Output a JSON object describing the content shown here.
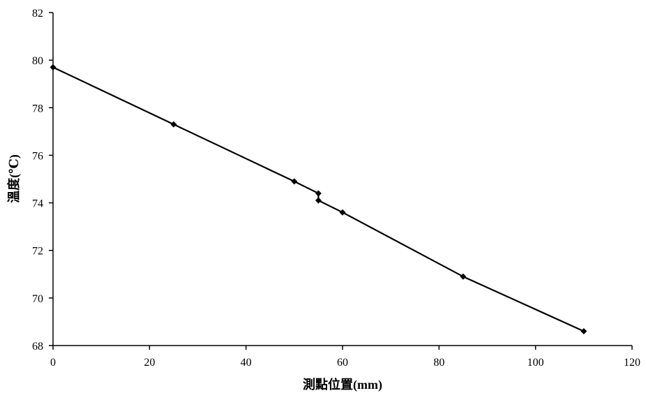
{
  "chart_data": {
    "type": "line",
    "title": "",
    "xlabel": "測點位置(mm)",
    "ylabel": "溫度(℃)",
    "xlim": [
      0,
      120
    ],
    "ylim": [
      68,
      82
    ],
    "x_ticks": [
      0,
      20,
      40,
      60,
      80,
      100,
      120
    ],
    "y_ticks": [
      68,
      70,
      72,
      74,
      76,
      78,
      80,
      82
    ],
    "grid": false,
    "legend": "none",
    "series": [
      {
        "marker": "diamond",
        "color": "#000000",
        "points": [
          {
            "x": 0,
            "y": 79.7
          },
          {
            "x": 25,
            "y": 77.3
          },
          {
            "x": 50,
            "y": 74.9
          },
          {
            "x": 55,
            "y": 74.4
          },
          {
            "x": 55,
            "y": 74.1
          },
          {
            "x": 60,
            "y": 73.6
          },
          {
            "x": 85,
            "y": 70.9
          },
          {
            "x": 110,
            "y": 68.6
          }
        ]
      }
    ]
  }
}
